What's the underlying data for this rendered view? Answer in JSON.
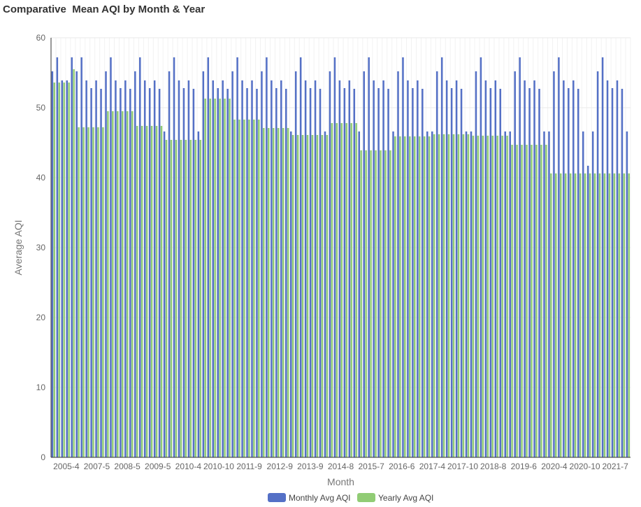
{
  "chart_data": {
    "type": "bar",
    "title": "Comparative  Mean AQI by Month & Year",
    "xlabel": "Month",
    "ylabel": "Average AQI",
    "ylim": [
      0,
      60
    ],
    "yticks": [
      "0",
      "10",
      "20",
      "30",
      "40",
      "50",
      "60"
    ],
    "grid": true,
    "legend_position": "bottom",
    "colors": {
      "monthly": "#5470c6",
      "yearly": "#91cc75"
    },
    "x_tick_labels": [
      "2005-4",
      "2007-5",
      "2008-5",
      "2009-5",
      "2010-4",
      "2010-10",
      "2011-9",
      "2012-9",
      "2013-9",
      "2014-8",
      "2015-7",
      "2016-6",
      "2017-4",
      "2017-10",
      "2018-8",
      "2019-6",
      "2020-4",
      "2020-10",
      "2021-7"
    ],
    "series": [
      {
        "name": "Monthly Avg AQI",
        "values": [
          55.2,
          57.2,
          53.9,
          53.9,
          57.2,
          55.2,
          57.2,
          53.9,
          52.8,
          53.9,
          52.7,
          55.2,
          57.2,
          53.9,
          52.8,
          53.9,
          52.7,
          55.2,
          57.2,
          53.9,
          52.8,
          53.9,
          52.7,
          46.6,
          55.2,
          57.2,
          53.9,
          52.8,
          53.9,
          52.7,
          46.6,
          55.2,
          57.2,
          53.9,
          52.8,
          53.9,
          52.7,
          55.2,
          57.2,
          53.9,
          52.8,
          53.9,
          52.7,
          55.2,
          57.2,
          53.9,
          52.8,
          53.9,
          52.7,
          46.6,
          55.2,
          57.2,
          53.9,
          52.8,
          53.9,
          52.7,
          46.6,
          55.2,
          57.2,
          53.9,
          52.8,
          53.9,
          52.7,
          46.6,
          55.2,
          57.2,
          53.9,
          52.8,
          53.9,
          52.7,
          46.6,
          55.2,
          57.2,
          53.9,
          52.8,
          53.9,
          52.7,
          46.6,
          46.6,
          55.2,
          57.2,
          53.9,
          52.8,
          53.9,
          52.7,
          46.6,
          46.6,
          55.2,
          57.2,
          53.9,
          52.8,
          53.9,
          52.7,
          46.6,
          46.6,
          55.2,
          57.2,
          53.9,
          52.8,
          53.9,
          52.7,
          46.6,
          46.6,
          55.2,
          57.2,
          53.9,
          52.8,
          53.9,
          52.7,
          46.6,
          41.7,
          46.6,
          55.2,
          57.2,
          53.9,
          52.8,
          53.9,
          52.7,
          46.6
        ]
      },
      {
        "name": "Yearly Avg AQI",
        "values": [
          53.6,
          53.6,
          53.6,
          53.6,
          55.5,
          47.2,
          47.2,
          47.2,
          47.2,
          47.2,
          47.2,
          49.5,
          49.5,
          49.5,
          49.5,
          49.5,
          49.5,
          47.4,
          47.4,
          47.4,
          47.4,
          47.4,
          47.4,
          45.4,
          45.4,
          45.4,
          45.4,
          45.4,
          45.4,
          45.4,
          45.4,
          51.3,
          51.3,
          51.3,
          51.3,
          51.3,
          51.3,
          48.3,
          48.3,
          48.3,
          48.3,
          48.3,
          48.3,
          47.1,
          47.1,
          47.1,
          47.1,
          47.1,
          47.1,
          46.1,
          46.1,
          46.1,
          46.1,
          46.1,
          46.1,
          46.1,
          46.1,
          47.8,
          47.8,
          47.8,
          47.8,
          47.8,
          47.8,
          43.9,
          43.9,
          43.9,
          43.9,
          43.9,
          43.9,
          43.9,
          45.9,
          45.9,
          45.9,
          45.9,
          45.9,
          45.9,
          45.9,
          45.9,
          46.2,
          46.2,
          46.2,
          46.2,
          46.2,
          46.2,
          46.2,
          46.2,
          46.0,
          46.0,
          46.0,
          46.0,
          46.0,
          46.0,
          46.0,
          46.0,
          44.7,
          44.7,
          44.7,
          44.7,
          44.7,
          44.7,
          44.7,
          44.7,
          40.6,
          40.6,
          40.6,
          40.6,
          40.6,
          40.6,
          40.6,
          40.6,
          40.6,
          40.6,
          40.6,
          40.6,
          40.6,
          40.6,
          40.6,
          40.6,
          40.6
        ]
      }
    ]
  }
}
